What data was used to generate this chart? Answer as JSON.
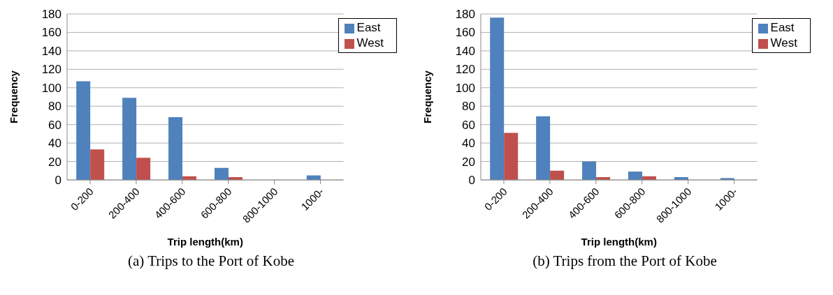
{
  "chart_data": [
    {
      "type": "bar",
      "title": "(a) Trips to the Port of Kobe",
      "xlabel": "Trip length(km)",
      "ylabel": "Frequency",
      "categories": [
        "0-200",
        "200-400",
        "400-600",
        "600-800",
        "800-1000",
        "1000-"
      ],
      "series": [
        {
          "name": "East",
          "color": "#4f81bd",
          "values": [
            107,
            89,
            68,
            13,
            0,
            5
          ]
        },
        {
          "name": "West",
          "color": "#c0504d",
          "values": [
            33,
            24,
            4,
            3,
            0,
            0
          ]
        }
      ],
      "ylim": [
        0,
        180
      ],
      "yticks": [
        0,
        20,
        40,
        60,
        80,
        100,
        120,
        140,
        160,
        180
      ],
      "grid": "y",
      "legend": "top right"
    },
    {
      "type": "bar",
      "title": "(b) Trips from the Port of Kobe",
      "xlabel": "Trip length(km)",
      "ylabel": "Frequency",
      "categories": [
        "0-200",
        "200-400",
        "400-600",
        "600-800",
        "800-1000",
        "1000-"
      ],
      "series": [
        {
          "name": "East",
          "color": "#4f81bd",
          "values": [
            176,
            69,
            20,
            9,
            3,
            2
          ]
        },
        {
          "name": "West",
          "color": "#c0504d",
          "values": [
            51,
            10,
            3,
            4,
            0,
            0
          ]
        }
      ],
      "ylim": [
        0,
        180
      ],
      "yticks": [
        0,
        20,
        40,
        60,
        80,
        100,
        120,
        140,
        160,
        180
      ],
      "grid": "y",
      "legend": "top right"
    }
  ]
}
